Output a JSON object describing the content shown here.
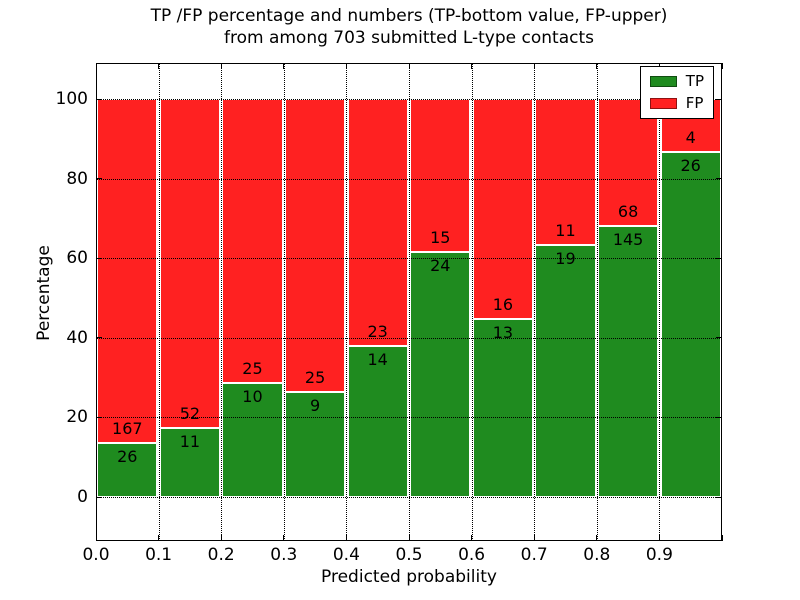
{
  "title": {
    "line1": "TP /FP percentage and numbers (TP-bottom value, FP-upper)",
    "line2": "from among 703 submitted L-type contacts"
  },
  "axes": {
    "xlabel": "Predicted probability",
    "ylabel": "Percentage",
    "x_tick_labels": [
      "0.0",
      "0.1",
      "0.2",
      "0.3",
      "0.4",
      "0.5",
      "0.6",
      "0.7",
      "0.8",
      "0.9"
    ],
    "y_tick_labels": [
      "0",
      "20",
      "40",
      "60",
      "80",
      "100"
    ],
    "y_tick_values": [
      0,
      20,
      40,
      60,
      80,
      100
    ]
  },
  "legend": {
    "items": [
      {
        "label": "TP",
        "color": "#1f8b1f"
      },
      {
        "label": "FP",
        "color": "#ff2121"
      }
    ]
  },
  "chart_data": {
    "type": "bar",
    "stacked": true,
    "normalized": "percent-of-bin",
    "title": "TP /FP percentage and numbers (TP-bottom value, FP-upper) from among 703 submitted L-type contacts",
    "xlabel": "Predicted probability",
    "ylabel": "Percentage",
    "x_bins": [
      "0.0-0.1",
      "0.1-0.2",
      "0.2-0.3",
      "0.3-0.4",
      "0.4-0.5",
      "0.5-0.6",
      "0.6-0.7",
      "0.7-0.8",
      "0.8-0.9",
      "0.9-1.0"
    ],
    "series": [
      {
        "name": "TP",
        "color": "#1f8b1f",
        "values": [
          26,
          11,
          10,
          9,
          14,
          24,
          13,
          19,
          145,
          26
        ]
      },
      {
        "name": "FP",
        "color": "#ff2121",
        "values": [
          167,
          52,
          25,
          25,
          23,
          15,
          16,
          11,
          68,
          4
        ]
      }
    ],
    "tp_percent": [
      13.5,
      17.5,
      28.6,
      26.5,
      37.8,
      61.5,
      44.8,
      63.3,
      68.1,
      86.7
    ],
    "total_contacts": 703,
    "ylim": [
      0,
      100
    ],
    "grid": true,
    "grid_style": "dotted",
    "legend_position": "upper right"
  }
}
